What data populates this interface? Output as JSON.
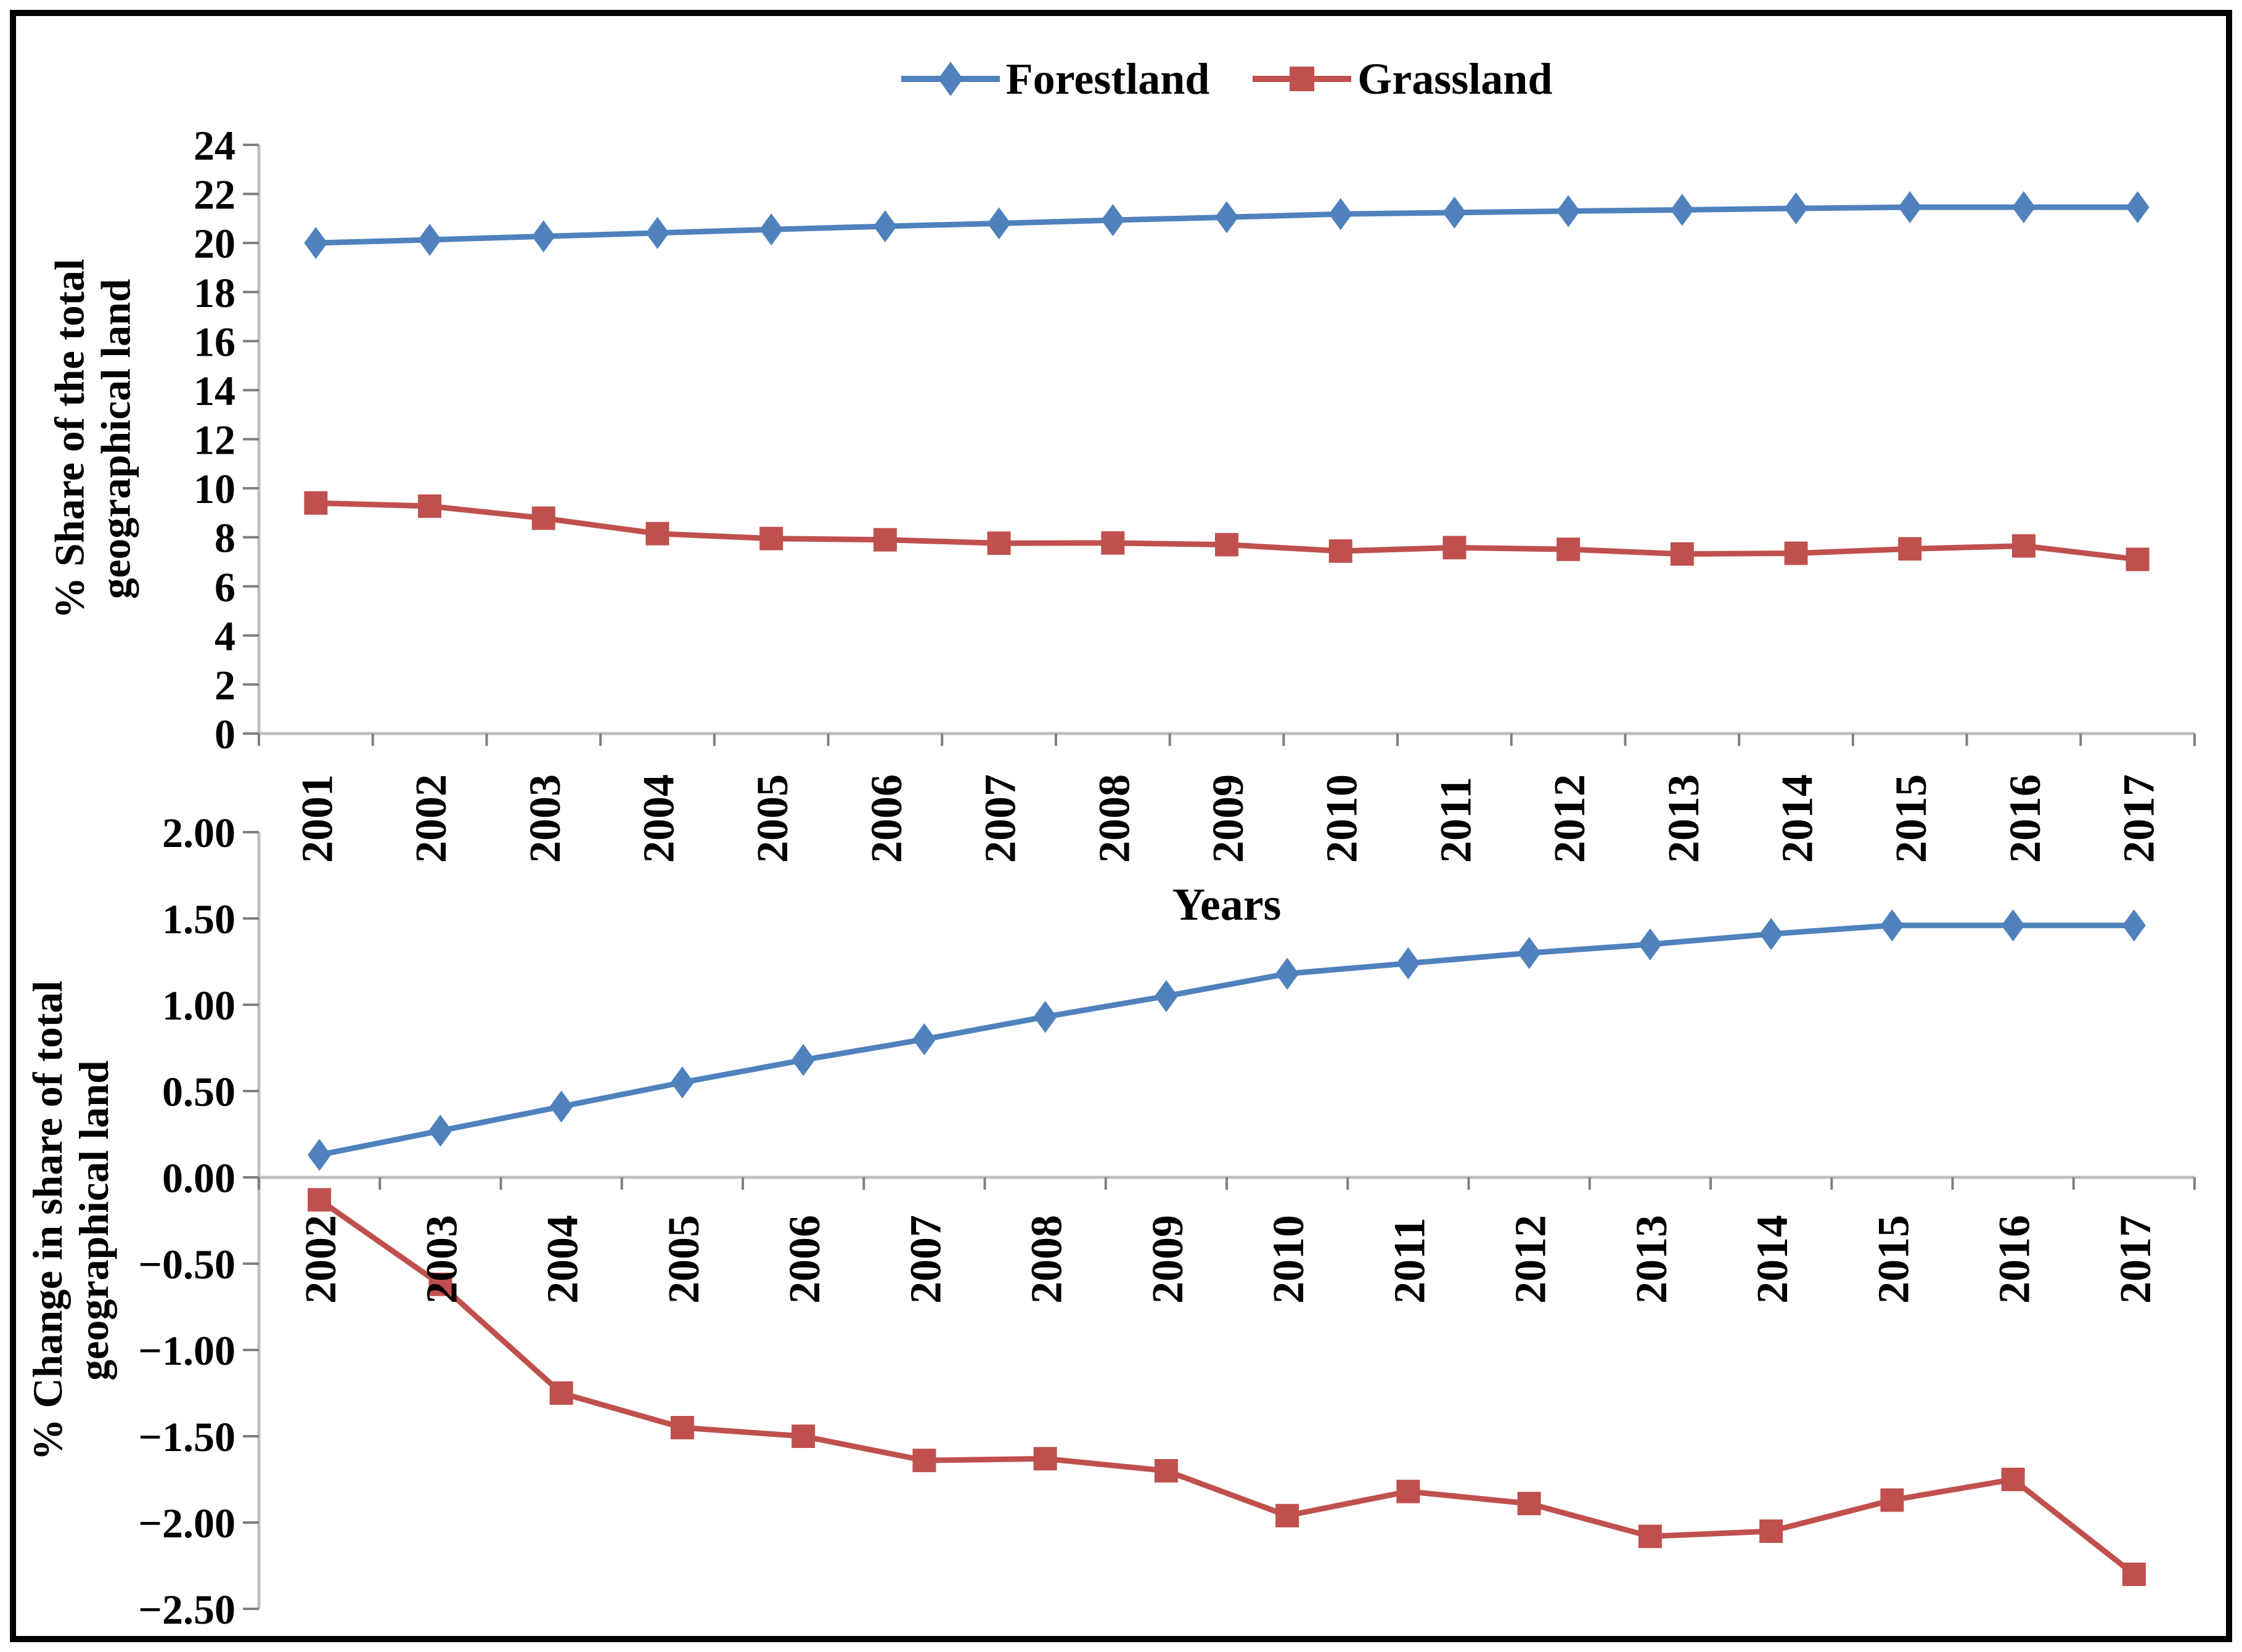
{
  "legend": {
    "items": [
      {
        "label": "Forestland",
        "color": "#4F81BD",
        "marker": "diamond"
      },
      {
        "label": "Grassland",
        "color": "#C0504D",
        "marker": "square"
      }
    ]
  },
  "chart_data": [
    {
      "type": "line",
      "title": "",
      "xlabel": "Years",
      "ylabel": "% Share of the total geographical land",
      "ylabel_lines": [
        "% Share of the total",
        "geographical land"
      ],
      "ylim": [
        0,
        24
      ],
      "ytick_step": 2,
      "ytick_labels": [
        "24",
        "22",
        "20",
        "18",
        "16",
        "14",
        "12",
        "10",
        "8",
        "6",
        "4",
        "2",
        "0"
      ],
      "grid": false,
      "legend_position": "top-center",
      "categories": [
        "2001",
        "2002",
        "2003",
        "2004",
        "2005",
        "2006",
        "2007",
        "2008",
        "2009",
        "2010",
        "2011",
        "2012",
        "2013",
        "2014",
        "2015",
        "2016",
        "2017"
      ],
      "series": [
        {
          "name": "Forestland",
          "color": "#4F81BD",
          "marker": "diamond",
          "values": [
            20.0,
            20.13,
            20.27,
            20.41,
            20.55,
            20.68,
            20.8,
            20.93,
            21.05,
            21.18,
            21.24,
            21.3,
            21.35,
            21.41,
            21.46,
            21.46,
            21.46
          ]
        },
        {
          "name": "Grassland",
          "color": "#C0504D",
          "marker": "square",
          "values": [
            9.4,
            9.27,
            8.78,
            8.15,
            7.95,
            7.9,
            7.76,
            7.77,
            7.7,
            7.44,
            7.58,
            7.51,
            7.32,
            7.35,
            7.53,
            7.65,
            7.1
          ]
        }
      ]
    },
    {
      "type": "line",
      "title": "",
      "xlabel": "",
      "ylabel": "% Change in share of total geographical land",
      "ylabel_lines": [
        "% Change in share of total",
        "geographical land"
      ],
      "ylim": [
        -2.5,
        2.0
      ],
      "ytick_step": 0.5,
      "ytick_labels": [
        "2.00",
        "1.50",
        "1.00",
        "0.50",
        "0.00",
        "−0.50",
        "−1.00",
        "−1.50",
        "−2.00",
        "−2.50"
      ],
      "grid": false,
      "categories": [
        "2002",
        "2003",
        "2004",
        "2005",
        "2006",
        "2007",
        "2008",
        "2009",
        "2010",
        "2011",
        "2012",
        "2013",
        "2014",
        "2015",
        "2016",
        "2017"
      ],
      "series": [
        {
          "name": "Forestland",
          "color": "#4F81BD",
          "marker": "diamond",
          "values": [
            0.13,
            0.27,
            0.41,
            0.55,
            0.68,
            0.8,
            0.93,
            1.05,
            1.18,
            1.24,
            1.3,
            1.35,
            1.41,
            1.46,
            1.46,
            1.46
          ]
        },
        {
          "name": "Grassland",
          "color": "#C0504D",
          "marker": "square",
          "values": [
            -0.13,
            -0.62,
            -1.25,
            -1.45,
            -1.5,
            -1.64,
            -1.63,
            -1.7,
            -1.96,
            -1.82,
            -1.89,
            -2.08,
            -2.05,
            -1.87,
            -1.75,
            -2.3
          ]
        }
      ]
    }
  ]
}
